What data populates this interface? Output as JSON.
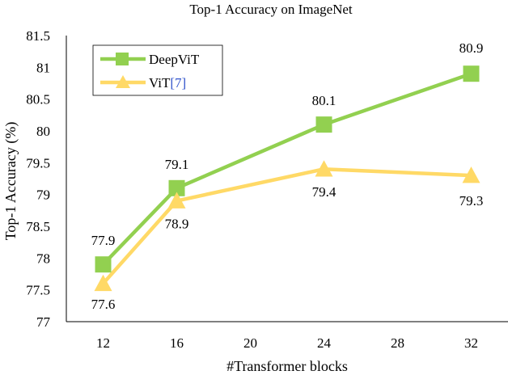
{
  "chart_data": {
    "type": "line",
    "title": "Top-1 Accuracy on ImageNet",
    "xlabel": "#Transformer blocks",
    "ylabel": "Top-1 Accuracy (%)",
    "x_ticks": [
      12,
      16,
      20,
      24,
      28,
      32
    ],
    "y_ticks": [
      77,
      77.5,
      78,
      78.5,
      79,
      79.5,
      80,
      80.5,
      81,
      81.5
    ],
    "xlim": [
      10,
      34
    ],
    "ylim": [
      77,
      81.5
    ],
    "grid": false,
    "legend_position": "top-left",
    "series": [
      {
        "name": "DeepViT",
        "color": "#92d050",
        "marker": "square",
        "x": [
          12,
          16,
          24,
          32
        ],
        "values": [
          77.9,
          79.1,
          80.1,
          80.9
        ],
        "labels": [
          "77.9",
          "79.1",
          "80.1",
          "80.9"
        ]
      },
      {
        "name": "ViT",
        "name_ref": "[7]",
        "ref_color": "#3355cc",
        "color": "#ffd966",
        "marker": "triangle",
        "x": [
          12,
          16,
          24,
          32
        ],
        "values": [
          77.6,
          78.9,
          79.4,
          79.3
        ],
        "labels": [
          "77.6",
          "78.9",
          "79.4",
          "79.3"
        ]
      }
    ]
  }
}
